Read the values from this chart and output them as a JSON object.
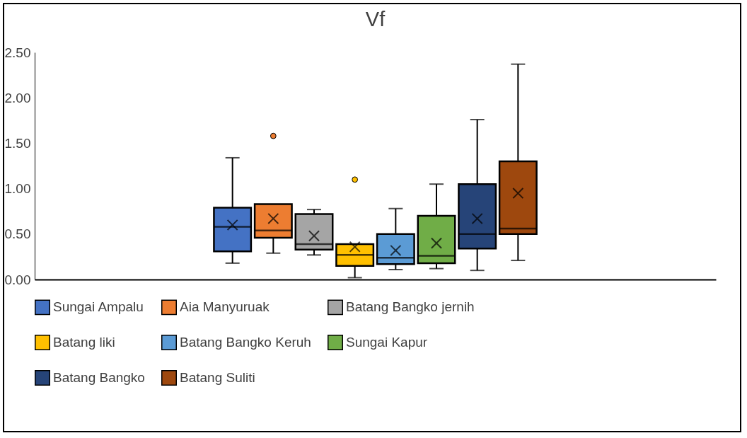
{
  "chart_data": {
    "type": "box",
    "title": "Vf",
    "categories": [
      null
    ],
    "ylim": [
      0,
      2.5
    ],
    "yticks": [
      {
        "value": 0,
        "label": "0.00"
      },
      {
        "value": 0.5,
        "label": "0.50"
      },
      {
        "value": 1,
        "label": "1.00"
      },
      {
        "value": 1.5,
        "label": "1.50"
      },
      {
        "value": 2,
        "label": "2.00"
      },
      {
        "value": 2.5,
        "label": "2.50"
      }
    ],
    "legend": "bottom",
    "tick_labels": "y",
    "series": [
      {
        "name": "Sungai Ampalu",
        "color": "#4472c4",
        "boxes": [
          {
            "low": 0.18,
            "q1": 0.31,
            "median": 0.58,
            "q3": 0.79,
            "high": 1.34,
            "mean": 0.6
          }
        ]
      },
      {
        "name": "Aia Manyuruak",
        "color": "#ed7d31",
        "boxes": [
          {
            "low": 0.29,
            "q1": 0.46,
            "median": 0.54,
            "q3": 0.83,
            "high": 0.83,
            "mean": 0.67,
            "outliers": [
              1.58
            ]
          }
        ]
      },
      {
        "name": "Batang Bangko jernih",
        "color": "#a5a5a5",
        "boxes": [
          {
            "low": 0.27,
            "q1": 0.33,
            "median": 0.39,
            "q3": 0.72,
            "high": 0.77,
            "mean": 0.48
          }
        ]
      },
      {
        "name": "Batang liki",
        "color": "#ffc000",
        "boxes": [
          {
            "low": 0.02,
            "q1": 0.15,
            "median": 0.27,
            "q3": 0.39,
            "high": 0.39,
            "mean": 0.36,
            "outliers": [
              1.1
            ]
          }
        ]
      },
      {
        "name": "Batang Bangko Keruh",
        "color": "#5b9bd5",
        "boxes": [
          {
            "low": 0.11,
            "q1": 0.17,
            "median": 0.24,
            "q3": 0.5,
            "high": 0.78,
            "mean": 0.32
          }
        ]
      },
      {
        "name": "Sungai Kapur",
        "color": "#70ad47",
        "boxes": [
          {
            "low": 0.12,
            "q1": 0.18,
            "median": 0.26,
            "q3": 0.7,
            "high": 1.05,
            "mean": 0.4
          }
        ]
      },
      {
        "name": "Batang Bangko",
        "color": "#264478",
        "boxes": [
          {
            "low": 0.1,
            "q1": 0.34,
            "median": 0.5,
            "q3": 1.05,
            "high": 1.76,
            "mean": 0.67
          }
        ]
      },
      {
        "name": "Batang Suliti",
        "color": "#9e480e",
        "boxes": [
          {
            "low": 0.21,
            "q1": 0.5,
            "median": 0.56,
            "q3": 1.3,
            "high": 2.37,
            "mean": 0.95
          }
        ]
      }
    ]
  }
}
